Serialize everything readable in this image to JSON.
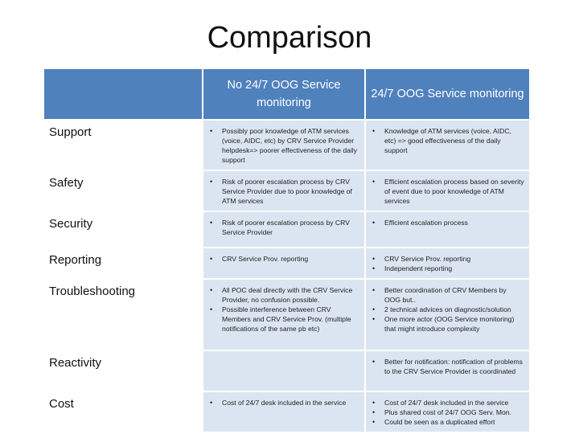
{
  "title": "Comparison",
  "table": {
    "col_headers": [
      "No 24/7 OOG Service monitoring",
      "24/7 OOG Service monitoring"
    ],
    "rows": [
      {
        "label": "Support",
        "no": [
          "Possibly poor knowledge of ATM services (voice, AIDC, etc) by CRV Service Provider helpdesk=> poorer effectiveness of the daily support"
        ],
        "yes": [
          "Knowledge of ATM services (voice, AIDC, etc) => good effectiveness of the daily support"
        ]
      },
      {
        "label": "Safety",
        "no": [
          "Risk of poorer escalation process by CRV Service Provider due to poor knowledge of ATM services"
        ],
        "yes": [
          "Efficient escalation process based on severity of event due to poor knowledge of ATM services"
        ]
      },
      {
        "label": "Security",
        "no": [
          "Risk of poorer escalation process by CRV Service Provider"
        ],
        "yes": [
          "Efficient escalation process"
        ]
      },
      {
        "label": "Reporting",
        "no": [
          "CRV Service Prov. reporting"
        ],
        "yes": [
          "CRV Service Prov. reporting",
          "Independent reporting"
        ]
      },
      {
        "label": "Troubleshooting",
        "no": [
          "All POC deal directly with the CRV Service Provider, no confusion possible.",
          "Possible interference between CRV Members and CRV Service Prov. (multiple notifications of the same pb etc)"
        ],
        "yes": [
          "Better coordination of CRV Members by OOG but..",
          "2 technical advices on diagnostic/solution",
          "One more actor (OOG Service monitoring) that might introduce complexity"
        ]
      },
      {
        "label": "Reactivity",
        "no": [],
        "yes": [
          "Better for notification: notification of problems to the CRV Service Provider is coordinated"
        ]
      },
      {
        "label": "Cost",
        "no": [
          "Cost of 24/7 desk included in the service"
        ],
        "yes": [
          "Cost of 24/7 desk included in the service",
          "Plus shared cost of 24/7 OOG Serv. Mon.",
          "Could be seen as a duplicated effort"
        ]
      }
    ]
  }
}
